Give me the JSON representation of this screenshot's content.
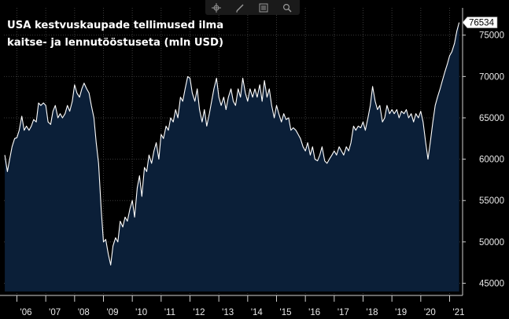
{
  "title_lines": [
    "USA kestvuskaupade tellimused ilma",
    "kaitse- ja lennutööstuseta (mln USD)"
  ],
  "toolbar": {
    "icons": [
      "crosshair-icon",
      "draw-pen-icon",
      "legend-list-icon",
      "zoom-icon"
    ]
  },
  "colors": {
    "background": "#000000",
    "area_fill": "#0b1f38",
    "line": "#ffffff",
    "axis": "#cfcfcf"
  },
  "chart_data": {
    "type": "area",
    "title": "USA kestvuskaupade tellimused ilma kaitse- ja lennutööstuseta (mln USD)",
    "xlabel": "",
    "ylabel": "",
    "x_start": 2005.55,
    "x_end": 2021.45,
    "ylim": [
      44000,
      78300
    ],
    "y_ticks": [
      45000,
      50000,
      55000,
      60000,
      65000,
      70000,
      75000
    ],
    "y_tick_labels": [
      "45000",
      "50000",
      "55000",
      "60000",
      "65000",
      "70000",
      "75000"
    ],
    "x_tick_years": [
      2006,
      2007,
      2008,
      2009,
      2010,
      2011,
      2012,
      2013,
      2014,
      2015,
      2016,
      2017,
      2018,
      2019,
      2020,
      2021
    ],
    "x_tick_labels": [
      "'06",
      "'07",
      "'08",
      "'09",
      "'10",
      "'11",
      "'12",
      "'13",
      "'14",
      "'15",
      "'16",
      "'17",
      "'18",
      "'19",
      "'20",
      "'21"
    ],
    "last_value_label": "76534",
    "series": [
      {
        "points": [
          [
            2005.58,
            60500
          ],
          [
            2005.67,
            58500
          ],
          [
            2005.75,
            60000
          ],
          [
            2005.83,
            61500
          ],
          [
            2005.92,
            62500
          ],
          [
            2006.0,
            62600
          ],
          [
            2006.08,
            63500
          ],
          [
            2006.17,
            65200
          ],
          [
            2006.25,
            63500
          ],
          [
            2006.33,
            64000
          ],
          [
            2006.42,
            63500
          ],
          [
            2006.5,
            64000
          ],
          [
            2006.58,
            64800
          ],
          [
            2006.67,
            64500
          ],
          [
            2006.75,
            66800
          ],
          [
            2006.83,
            66500
          ],
          [
            2006.92,
            66800
          ],
          [
            2007.0,
            66500
          ],
          [
            2007.08,
            64500
          ],
          [
            2007.17,
            64200
          ],
          [
            2007.25,
            65800
          ],
          [
            2007.33,
            66500
          ],
          [
            2007.42,
            65000
          ],
          [
            2007.5,
            65500
          ],
          [
            2007.58,
            65000
          ],
          [
            2007.67,
            65500
          ],
          [
            2007.75,
            66500
          ],
          [
            2007.83,
            65800
          ],
          [
            2007.92,
            67000
          ],
          [
            2008.0,
            69000
          ],
          [
            2008.08,
            68000
          ],
          [
            2008.17,
            67500
          ],
          [
            2008.25,
            68500
          ],
          [
            2008.33,
            69200
          ],
          [
            2008.42,
            68500
          ],
          [
            2008.5,
            68000
          ],
          [
            2008.58,
            66500
          ],
          [
            2008.67,
            65000
          ],
          [
            2008.75,
            62000
          ],
          [
            2008.83,
            59500
          ],
          [
            2008.92,
            54000
          ],
          [
            2009.0,
            50000
          ],
          [
            2009.08,
            50300
          ],
          [
            2009.17,
            48500
          ],
          [
            2009.25,
            47200
          ],
          [
            2009.33,
            49500
          ],
          [
            2009.42,
            50500
          ],
          [
            2009.5,
            50000
          ],
          [
            2009.58,
            52500
          ],
          [
            2009.67,
            51800
          ],
          [
            2009.75,
            53000
          ],
          [
            2009.83,
            52500
          ],
          [
            2009.92,
            54000
          ],
          [
            2010.0,
            55000
          ],
          [
            2010.08,
            53000
          ],
          [
            2010.17,
            56500
          ],
          [
            2010.25,
            58000
          ],
          [
            2010.33,
            55500
          ],
          [
            2010.42,
            59000
          ],
          [
            2010.5,
            58500
          ],
          [
            2010.58,
            60500
          ],
          [
            2010.67,
            59500
          ],
          [
            2010.75,
            61000
          ],
          [
            2010.83,
            62000
          ],
          [
            2010.92,
            60000
          ],
          [
            2011.0,
            63000
          ],
          [
            2011.08,
            62500
          ],
          [
            2011.17,
            64000
          ],
          [
            2011.25,
            63500
          ],
          [
            2011.33,
            65000
          ],
          [
            2011.42,
            64500
          ],
          [
            2011.5,
            66000
          ],
          [
            2011.58,
            65000
          ],
          [
            2011.67,
            67500
          ],
          [
            2011.75,
            67000
          ],
          [
            2011.83,
            68500
          ],
          [
            2011.92,
            70000
          ],
          [
            2012.0,
            69800
          ],
          [
            2012.08,
            68000
          ],
          [
            2012.17,
            67000
          ],
          [
            2012.25,
            68500
          ],
          [
            2012.33,
            66000
          ],
          [
            2012.42,
            64500
          ],
          [
            2012.5,
            66000
          ],
          [
            2012.58,
            64000
          ],
          [
            2012.67,
            65500
          ],
          [
            2012.75,
            67000
          ],
          [
            2012.83,
            68500
          ],
          [
            2012.92,
            69800
          ],
          [
            2013.0,
            67500
          ],
          [
            2013.08,
            66500
          ],
          [
            2013.17,
            67500
          ],
          [
            2013.25,
            66000
          ],
          [
            2013.33,
            67500
          ],
          [
            2013.42,
            68500
          ],
          [
            2013.5,
            67000
          ],
          [
            2013.58,
            66500
          ],
          [
            2013.67,
            68500
          ],
          [
            2013.75,
            67500
          ],
          [
            2013.83,
            69800
          ],
          [
            2013.92,
            68000
          ],
          [
            2014.0,
            67000
          ],
          [
            2014.08,
            68500
          ],
          [
            2014.17,
            67500
          ],
          [
            2014.25,
            68500
          ],
          [
            2014.33,
            67500
          ],
          [
            2014.42,
            69000
          ],
          [
            2014.5,
            67000
          ],
          [
            2014.58,
            69500
          ],
          [
            2014.67,
            67500
          ],
          [
            2014.75,
            68500
          ],
          [
            2014.83,
            66500
          ],
          [
            2014.92,
            65000
          ],
          [
            2015.0,
            66500
          ],
          [
            2015.08,
            65500
          ],
          [
            2015.17,
            64500
          ],
          [
            2015.25,
            65500
          ],
          [
            2015.33,
            64800
          ],
          [
            2015.42,
            65000
          ],
          [
            2015.5,
            63500
          ],
          [
            2015.58,
            63800
          ],
          [
            2015.67,
            63500
          ],
          [
            2015.75,
            63000
          ],
          [
            2015.83,
            62500
          ],
          [
            2015.92,
            61500
          ],
          [
            2016.0,
            61000
          ],
          [
            2016.08,
            62000
          ],
          [
            2016.17,
            60500
          ],
          [
            2016.25,
            61500
          ],
          [
            2016.33,
            60000
          ],
          [
            2016.42,
            59800
          ],
          [
            2016.5,
            60500
          ],
          [
            2016.58,
            61500
          ],
          [
            2016.67,
            59800
          ],
          [
            2016.75,
            59500
          ],
          [
            2016.83,
            60000
          ],
          [
            2016.92,
            60500
          ],
          [
            2017.0,
            61000
          ],
          [
            2017.08,
            60500
          ],
          [
            2017.17,
            61500
          ],
          [
            2017.25,
            61000
          ],
          [
            2017.33,
            60500
          ],
          [
            2017.42,
            61500
          ],
          [
            2017.5,
            61000
          ],
          [
            2017.58,
            62000
          ],
          [
            2017.67,
            64000
          ],
          [
            2017.75,
            63500
          ],
          [
            2017.83,
            64000
          ],
          [
            2017.92,
            63800
          ],
          [
            2018.0,
            64500
          ],
          [
            2018.08,
            63500
          ],
          [
            2018.17,
            65000
          ],
          [
            2018.25,
            66500
          ],
          [
            2018.33,
            68800
          ],
          [
            2018.42,
            67000
          ],
          [
            2018.5,
            66000
          ],
          [
            2018.58,
            66500
          ],
          [
            2018.67,
            64500
          ],
          [
            2018.75,
            65000
          ],
          [
            2018.83,
            66500
          ],
          [
            2018.92,
            65500
          ],
          [
            2019.0,
            66000
          ],
          [
            2019.08,
            65500
          ],
          [
            2019.17,
            66000
          ],
          [
            2019.25,
            65000
          ],
          [
            2019.33,
            65800
          ],
          [
            2019.42,
            65500
          ],
          [
            2019.5,
            66000
          ],
          [
            2019.58,
            65000
          ],
          [
            2019.67,
            65500
          ],
          [
            2019.75,
            64500
          ],
          [
            2019.83,
            65500
          ],
          [
            2019.92,
            65000
          ],
          [
            2020.0,
            65800
          ],
          [
            2020.08,
            64500
          ],
          [
            2020.17,
            62000
          ],
          [
            2020.25,
            60000
          ],
          [
            2020.33,
            62000
          ],
          [
            2020.42,
            64500
          ],
          [
            2020.5,
            66500
          ],
          [
            2020.58,
            67500
          ],
          [
            2020.67,
            68500
          ],
          [
            2020.75,
            69500
          ],
          [
            2020.83,
            70500
          ],
          [
            2020.92,
            71500
          ],
          [
            2021.0,
            72500
          ],
          [
            2021.08,
            73000
          ],
          [
            2021.17,
            74000
          ],
          [
            2021.25,
            75500
          ],
          [
            2021.33,
            76534
          ]
        ]
      }
    ]
  }
}
